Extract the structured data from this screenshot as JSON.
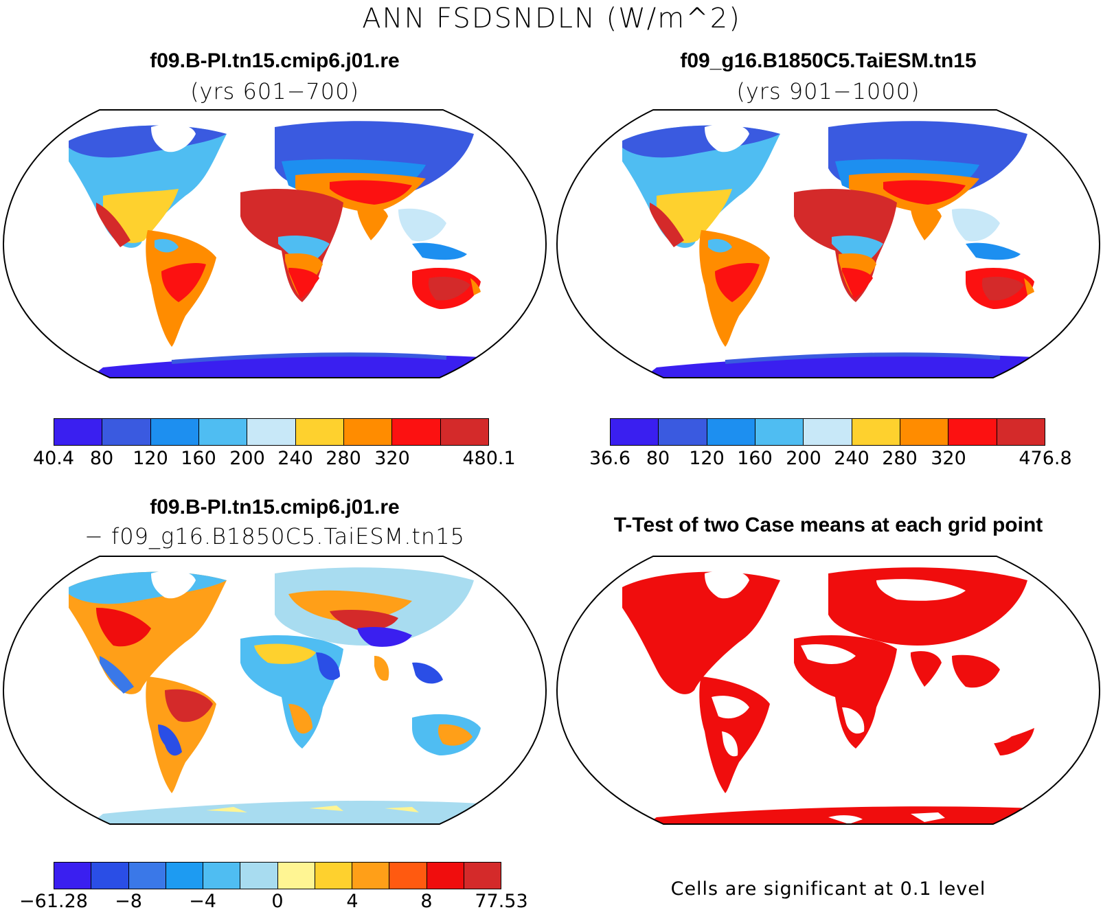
{
  "title": "ANN FSDSNDLN (W/m^2)",
  "panels": [
    {
      "title": "f09.B-PI.tn15.cmip6.j01.re",
      "subtitle": "(yrs 601−700)",
      "colorbar": {
        "colors": [
          "#3a1ff0",
          "#3a5ae0",
          "#1d8ff0",
          "#4fbdf2",
          "#c8e8f8",
          "#fed12e",
          "#ff8c00",
          "#fc1111",
          "#d42a2a"
        ],
        "labels": [
          "40.4",
          "80",
          "120",
          "160",
          "200",
          "240",
          "280",
          "320",
          "480.1"
        ]
      }
    },
    {
      "title": "f09_g16.B1850C5.TaiESM.tn15",
      "subtitle": "(yrs 901−1000)",
      "colorbar": {
        "colors": [
          "#3a1ff0",
          "#3a5ae0",
          "#1d8ff0",
          "#4fbdf2",
          "#c8e8f8",
          "#fed12e",
          "#ff8c00",
          "#fc1111",
          "#d42a2a"
        ],
        "labels": [
          "36.6",
          "80",
          "120",
          "160",
          "200",
          "240",
          "280",
          "320",
          "476.8"
        ]
      }
    },
    {
      "title": "f09.B-PI.tn15.cmip6.j01.re",
      "subtitle": "− f09_g16.B1850C5.TaiESM.tn15",
      "colorbar": {
        "colors": [
          "#3a1ff0",
          "#2a4ee6",
          "#3a78e8",
          "#1d9bf2",
          "#4fbdf2",
          "#a8dcf0",
          "#fff593",
          "#fed12e",
          "#ff9f18",
          "#ff5a10",
          "#f00d0d",
          "#d42a2a"
        ],
        "labels": [
          "−61.28",
          "−8",
          "−4",
          "0",
          "4",
          "8",
          "77.53"
        ]
      }
    },
    {
      "title": "T-Test of two Case means at each grid point",
      "subtitle": "",
      "note": "Cells are significant at 0.1 level"
    }
  ]
}
